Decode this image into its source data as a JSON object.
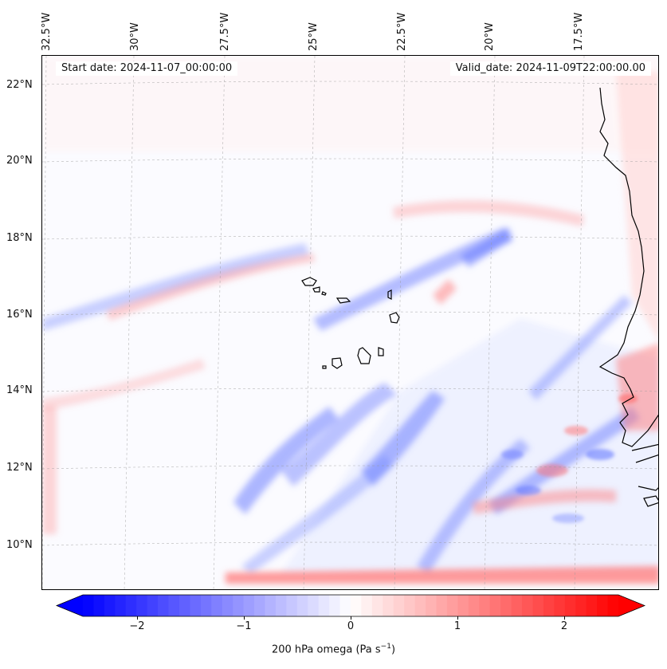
{
  "map": {
    "header": {
      "start_date": "Start date: 2024-11-07_00:00:00",
      "valid_date": "Valid_date: 2024-11-09T22:00:00.00"
    },
    "longitude_labels": [
      "32.5°W",
      "30°W",
      "27.5°W",
      "25°W",
      "22.5°W",
      "20°W",
      "17.5°W"
    ],
    "latitude_labels": [
      "22°N",
      "20°N",
      "18°N",
      "16°N",
      "14°N",
      "12°N",
      "10°N"
    ],
    "extent": {
      "lon_min": -32.8,
      "lon_max": -15.6,
      "lat_min": 8.9,
      "lat_max": 22.8
    },
    "field_colors": {
      "negative": "#0000ff",
      "zero": "#ffffff",
      "positive": "#ff0000"
    },
    "coastline_color": "#000000"
  },
  "colorbar": {
    "ticks": [
      "−2",
      "−1",
      "0",
      "1",
      "2"
    ],
    "tick_values": [
      -2,
      -1,
      0,
      1,
      2
    ],
    "range": [
      -2.5,
      2.5
    ],
    "extend": "both",
    "label_prefix": "200 hPa omega (Pa s",
    "label_exp": "−1",
    "label_suffix": ")"
  }
}
